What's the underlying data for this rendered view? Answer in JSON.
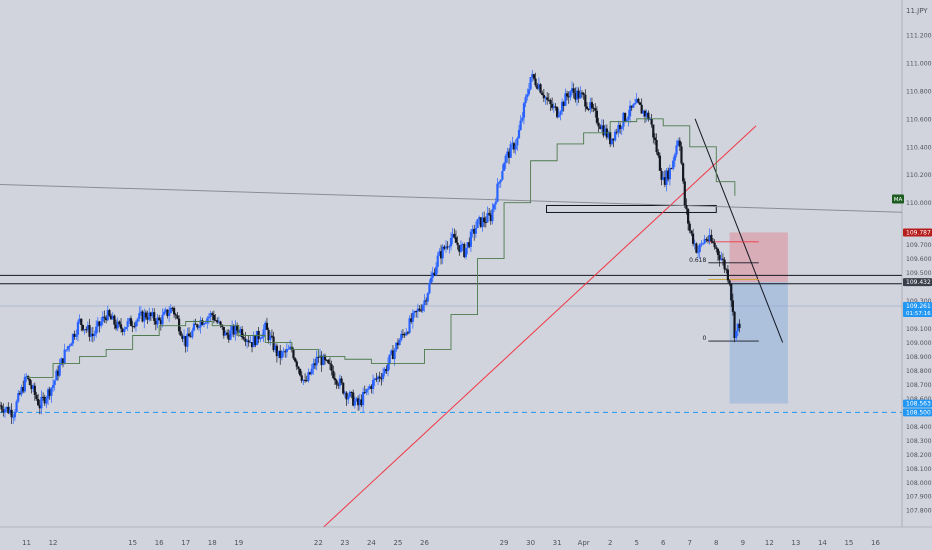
{
  "header": {
    "symbol_label": "11.JPY"
  },
  "colors": {
    "background": "#d1d4dc",
    "up_candle": "#2962ff",
    "down_candle": "#131722",
    "moving_average": "#4c7a4c",
    "trendline": "#f23645",
    "stop_zone": "#d9a9b3",
    "target_zone": "#a8bfdc",
    "price_tag_red": "#b71c1c",
    "price_tag_blue": "#2196f3",
    "price_tag_dark": "#3a3e4a",
    "ma_tag": "#1b5e20"
  },
  "chart_data": {
    "type": "candlestick",
    "title": "",
    "xlabel": "",
    "ylabel": "",
    "ylim": [
      107.68,
      111.45
    ],
    "grid": false,
    "y_ticks": [
      {
        "value": 111.2,
        "label": "111.200"
      },
      {
        "value": 111.0,
        "label": "111.000"
      },
      {
        "value": 110.8,
        "label": "110.800"
      },
      {
        "value": 110.6,
        "label": "110.600"
      },
      {
        "value": 110.4,
        "label": "110.400"
      },
      {
        "value": 110.2,
        "label": "110.200"
      },
      {
        "value": 110.0,
        "label": "110.000"
      },
      {
        "value": 109.8,
        "label": "109.800"
      },
      {
        "value": 109.7,
        "label": "109.700"
      },
      {
        "value": 109.6,
        "label": "109.600"
      },
      {
        "value": 109.5,
        "label": "109.500"
      },
      {
        "value": 109.3,
        "label": "109.300"
      },
      {
        "value": 109.1,
        "label": "109.100"
      },
      {
        "value": 109.0,
        "label": "109.000"
      },
      {
        "value": 108.9,
        "label": "108.900"
      },
      {
        "value": 108.8,
        "label": "108.800"
      },
      {
        "value": 108.7,
        "label": "108.700"
      },
      {
        "value": 108.6,
        "label": "108.600"
      },
      {
        "value": 108.4,
        "label": "108.400"
      },
      {
        "value": 108.3,
        "label": "108.300"
      },
      {
        "value": 108.2,
        "label": "108.200"
      },
      {
        "value": 108.1,
        "label": "108.100"
      },
      {
        "value": 108.0,
        "label": "108.000"
      },
      {
        "value": 107.9,
        "label": "107.900"
      },
      {
        "value": 107.8,
        "label": "107.800"
      }
    ],
    "x_ticks": [
      {
        "day": 11,
        "label": "11"
      },
      {
        "day": 12,
        "label": "12"
      },
      {
        "day": 15,
        "label": "15"
      },
      {
        "day": 16,
        "label": "16"
      },
      {
        "day": 17,
        "label": "17"
      },
      {
        "day": 18,
        "label": "18"
      },
      {
        "day": 19,
        "label": "19"
      },
      {
        "day": 22,
        "label": "22"
      },
      {
        "day": 23,
        "label": "23"
      },
      {
        "day": 24,
        "label": "24"
      },
      {
        "day": 25,
        "label": "25"
      },
      {
        "day": 26,
        "label": "26"
      },
      {
        "day": 29,
        "label": "29"
      },
      {
        "day": 30,
        "label": "30"
      },
      {
        "day": 31,
        "label": "31"
      },
      {
        "day": 32,
        "label": "Apr"
      },
      {
        "day": 33,
        "label": "2"
      },
      {
        "day": 34,
        "label": "5"
      },
      {
        "day": 35,
        "label": "6"
      },
      {
        "day": 36,
        "label": "7"
      },
      {
        "day": 37,
        "label": "8"
      },
      {
        "day": 38,
        "label": "9"
      },
      {
        "day": 39,
        "label": "12"
      },
      {
        "day": 40,
        "label": "13"
      },
      {
        "day": 41,
        "label": "14"
      },
      {
        "day": 42,
        "label": "15"
      },
      {
        "day": 43,
        "label": "16"
      }
    ],
    "price_path": [
      [
        10.0,
        108.55
      ],
      [
        10.5,
        108.5
      ],
      [
        11.0,
        108.75
      ],
      [
        11.5,
        108.55
      ],
      [
        12.0,
        108.7
      ],
      [
        12.5,
        108.95
      ],
      [
        13.0,
        109.15
      ],
      [
        13.5,
        109.05
      ],
      [
        14.0,
        109.2
      ],
      [
        14.5,
        109.1
      ],
      [
        15.0,
        109.15
      ],
      [
        15.5,
        109.2
      ],
      [
        16.0,
        109.15
      ],
      [
        16.5,
        109.25
      ],
      [
        17.0,
        109.0
      ],
      [
        17.5,
        109.15
      ],
      [
        18.0,
        109.2
      ],
      [
        18.5,
        109.05
      ],
      [
        19.0,
        109.1
      ],
      [
        19.5,
        109.0
      ],
      [
        20.0,
        109.1
      ],
      [
        20.5,
        108.9
      ],
      [
        21.0,
        108.95
      ],
      [
        21.5,
        108.7
      ],
      [
        22.0,
        108.9
      ],
      [
        22.5,
        108.8
      ],
      [
        23.0,
        108.65
      ],
      [
        23.5,
        108.55
      ],
      [
        24.0,
        108.7
      ],
      [
        24.5,
        108.8
      ],
      [
        25.0,
        109.0
      ],
      [
        25.5,
        109.15
      ],
      [
        26.0,
        109.3
      ],
      [
        26.5,
        109.6
      ],
      [
        27.0,
        109.75
      ],
      [
        27.5,
        109.65
      ],
      [
        28.0,
        109.85
      ],
      [
        28.5,
        109.9
      ],
      [
        29.0,
        110.3
      ],
      [
        29.5,
        110.45
      ],
      [
        30.0,
        110.9
      ],
      [
        30.3,
        110.85
      ],
      [
        30.7,
        110.7
      ],
      [
        31.0,
        110.65
      ],
      [
        31.5,
        110.8
      ],
      [
        32.0,
        110.75
      ],
      [
        32.5,
        110.6
      ],
      [
        33.0,
        110.45
      ],
      [
        33.5,
        110.6
      ],
      [
        34.0,
        110.7
      ],
      [
        34.5,
        110.6
      ],
      [
        35.0,
        110.15
      ],
      [
        35.3,
        110.25
      ],
      [
        35.6,
        110.5
      ],
      [
        35.8,
        110.0
      ],
      [
        36.0,
        109.8
      ],
      [
        36.3,
        109.65
      ],
      [
        36.6,
        109.75
      ],
      [
        36.9,
        109.7
      ],
      [
        37.2,
        109.6
      ],
      [
        37.5,
        109.45
      ],
      [
        37.7,
        109.05
      ],
      [
        37.9,
        109.15
      ]
    ],
    "moving_average": [
      [
        11.0,
        108.75
      ],
      [
        12.0,
        108.85
      ],
      [
        13.0,
        108.9
      ],
      [
        14.0,
        108.95
      ],
      [
        15.0,
        109.05
      ],
      [
        16.0,
        109.12
      ],
      [
        17.0,
        109.15
      ],
      [
        18.0,
        109.12
      ],
      [
        19.0,
        109.05
      ],
      [
        20.0,
        109.0
      ],
      [
        21.0,
        108.95
      ],
      [
        22.0,
        108.9
      ],
      [
        23.0,
        108.88
      ],
      [
        24.0,
        108.85
      ],
      [
        25.0,
        108.85
      ],
      [
        26.0,
        108.95
      ],
      [
        27.0,
        109.2
      ],
      [
        28.0,
        109.6
      ],
      [
        29.0,
        110.0
      ],
      [
        30.0,
        110.3
      ],
      [
        31.0,
        110.42
      ],
      [
        32.0,
        110.5
      ],
      [
        33.0,
        110.58
      ],
      [
        34.0,
        110.6
      ],
      [
        35.0,
        110.55
      ],
      [
        36.0,
        110.4
      ],
      [
        37.0,
        110.15
      ],
      [
        37.7,
        110.05
      ]
    ],
    "horizontal_lines": [
      {
        "name": "resistance-line-upper",
        "price": 109.48
      },
      {
        "name": "resistance-line-lower",
        "price": 109.42
      },
      {
        "name": "dashed-target-line",
        "price": 108.5
      }
    ],
    "zone_boxes": [
      {
        "name": "supply-zone-box",
        "x1": 30.6,
        "x2": 37.0,
        "y1": 109.98,
        "y2": 109.93
      }
    ],
    "trendlines": [
      {
        "name": "red-uptrend-line",
        "x1": 22.2,
        "y1": 107.68,
        "x2": 38.5,
        "y2": 110.55
      },
      {
        "name": "long-descending-line",
        "x1": 10.0,
        "y1": 110.13,
        "x2": 46.0,
        "y2": 109.92
      },
      {
        "name": "falling-trendline",
        "x1": 36.2,
        "y1": 110.6,
        "x2": 39.5,
        "y2": 109.0
      }
    ],
    "fibonacci": [
      {
        "label": "",
        "price": 109.72
      },
      {
        "label": "0.618",
        "price": 109.57
      },
      {
        "label": "",
        "price": 109.45
      },
      {
        "label": "0",
        "price": 109.01
      }
    ],
    "position": {
      "entry": 109.432,
      "stop": 109.787,
      "target": 108.563,
      "x_start": 37.5,
      "x_end": 39.7
    },
    "price_tags": [
      {
        "label": "109.787",
        "price": 109.787,
        "style": "red"
      },
      {
        "label": "109.432",
        "price": 109.432,
        "style": "dark"
      },
      {
        "label": "109.261",
        "price": 109.261,
        "style": "blue",
        "sub": "01:57:16"
      },
      {
        "label": "108.563",
        "price": 108.563,
        "style": "blue"
      },
      {
        "label": "108.500",
        "price": 108.5,
        "style": "blue"
      }
    ],
    "ma_tag": {
      "label": "MA",
      "price": 110.03
    }
  }
}
